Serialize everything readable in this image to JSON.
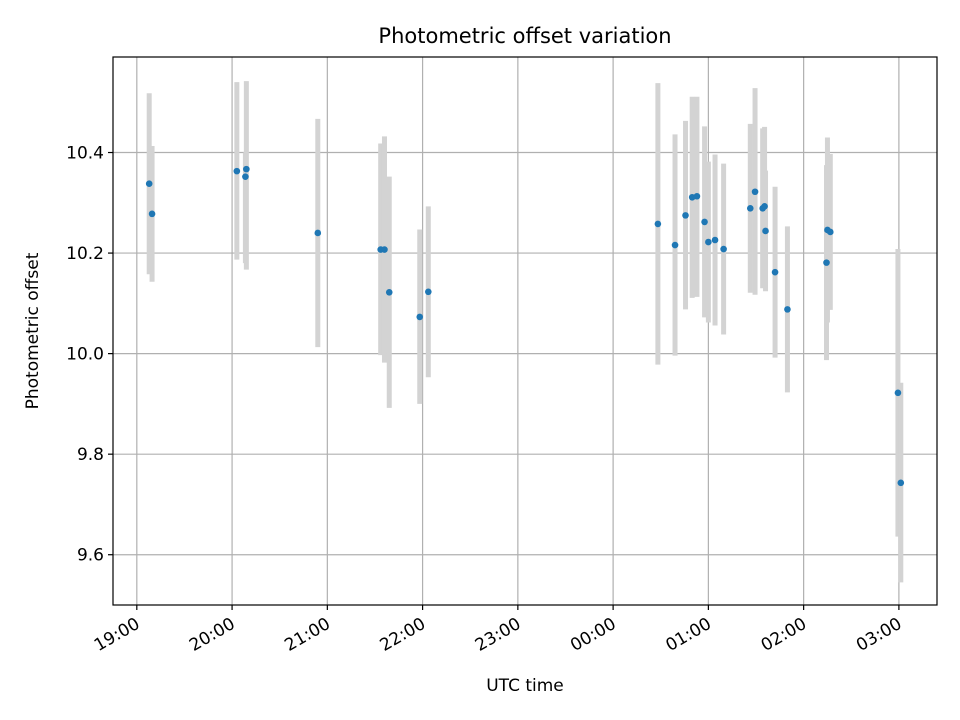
{
  "chart_data": {
    "type": "scatter",
    "title": "Photometric offset variation",
    "xlabel": "UTC time",
    "ylabel": "Photometric offset",
    "grid": true,
    "legend": "none",
    "colors": {
      "point": "#1f77b4",
      "errorbar": "#d3d3d3",
      "grid": "#b0b0b0"
    },
    "xlim_hours": [
      -0.25,
      8.4
    ],
    "ylim": [
      9.5,
      10.59
    ],
    "x_ticks": [
      {
        "h": 0,
        "label": "19:00"
      },
      {
        "h": 1,
        "label": "20:00"
      },
      {
        "h": 2,
        "label": "21:00"
      },
      {
        "h": 3,
        "label": "22:00"
      },
      {
        "h": 4,
        "label": "23:00"
      },
      {
        "h": 5,
        "label": "00:00"
      },
      {
        "h": 6,
        "label": "01:00"
      },
      {
        "h": 7,
        "label": "02:00"
      },
      {
        "h": 8,
        "label": "03:00"
      }
    ],
    "y_ticks": [
      {
        "v": 9.6,
        "label": "9.6"
      },
      {
        "v": 9.8,
        "label": "9.8"
      },
      {
        "v": 10.0,
        "label": "10.0"
      },
      {
        "v": 10.2,
        "label": "10.2"
      },
      {
        "v": 10.4,
        "label": "10.4"
      }
    ],
    "points": [
      {
        "t": 0.13,
        "y": 10.338,
        "lo": 10.158,
        "hi": 10.518
      },
      {
        "t": 0.16,
        "y": 10.278,
        "lo": 10.143,
        "hi": 10.413
      },
      {
        "t": 1.05,
        "y": 10.363,
        "lo": 10.187,
        "hi": 10.54
      },
      {
        "t": 1.14,
        "y": 10.352,
        "lo": 10.18,
        "hi": 10.4
      },
      {
        "t": 1.15,
        "y": 10.367,
        "lo": 10.167,
        "hi": 10.542
      },
      {
        "t": 1.9,
        "y": 10.24,
        "lo": 10.013,
        "hi": 10.467
      },
      {
        "t": 2.56,
        "y": 10.207,
        "lo": 9.997,
        "hi": 10.418
      },
      {
        "t": 2.6,
        "y": 10.207,
        "lo": 9.982,
        "hi": 10.432
      },
      {
        "t": 2.65,
        "y": 10.122,
        "lo": 9.892,
        "hi": 10.352
      },
      {
        "t": 2.97,
        "y": 10.073,
        "lo": 9.9,
        "hi": 10.247
      },
      {
        "t": 3.06,
        "y": 10.123,
        "lo": 9.953,
        "hi": 10.293
      },
      {
        "t": 5.47,
        "y": 10.258,
        "lo": 9.978,
        "hi": 10.538
      },
      {
        "t": 5.65,
        "y": 10.216,
        "lo": 9.996,
        "hi": 10.436
      },
      {
        "t": 5.76,
        "y": 10.275,
        "lo": 10.088,
        "hi": 10.463
      },
      {
        "t": 5.83,
        "y": 10.311,
        "lo": 10.111,
        "hi": 10.511
      },
      {
        "t": 5.88,
        "y": 10.313,
        "lo": 10.113,
        "hi": 10.511
      },
      {
        "t": 5.96,
        "y": 10.262,
        "lo": 10.072,
        "hi": 10.452
      },
      {
        "t": 6.0,
        "y": 10.222,
        "lo": 10.062,
        "hi": 10.382
      },
      {
        "t": 6.07,
        "y": 10.226,
        "lo": 10.056,
        "hi": 10.396
      },
      {
        "t": 6.16,
        "y": 10.208,
        "lo": 10.038,
        "hi": 10.378
      },
      {
        "t": 6.44,
        "y": 10.289,
        "lo": 10.121,
        "hi": 10.457
      },
      {
        "t": 6.49,
        "y": 10.322,
        "lo": 10.117,
        "hi": 10.528
      },
      {
        "t": 6.57,
        "y": 10.289,
        "lo": 10.13,
        "hi": 10.448
      },
      {
        "t": 6.59,
        "y": 10.293,
        "lo": 10.135,
        "hi": 10.451
      },
      {
        "t": 6.6,
        "y": 10.244,
        "lo": 10.124,
        "hi": 10.364
      },
      {
        "t": 6.7,
        "y": 10.162,
        "lo": 9.992,
        "hi": 10.332
      },
      {
        "t": 6.83,
        "y": 10.088,
        "lo": 9.923,
        "hi": 10.253
      },
      {
        "t": 7.24,
        "y": 10.181,
        "lo": 9.987,
        "hi": 10.375
      },
      {
        "t": 7.25,
        "y": 10.246,
        "lo": 10.062,
        "hi": 10.43
      },
      {
        "t": 7.28,
        "y": 10.242,
        "lo": 10.087,
        "hi": 10.397
      },
      {
        "t": 7.99,
        "y": 9.922,
        "lo": 9.636,
        "hi": 10.208
      },
      {
        "t": 8.02,
        "y": 9.743,
        "lo": 9.545,
        "hi": 9.942
      }
    ]
  }
}
